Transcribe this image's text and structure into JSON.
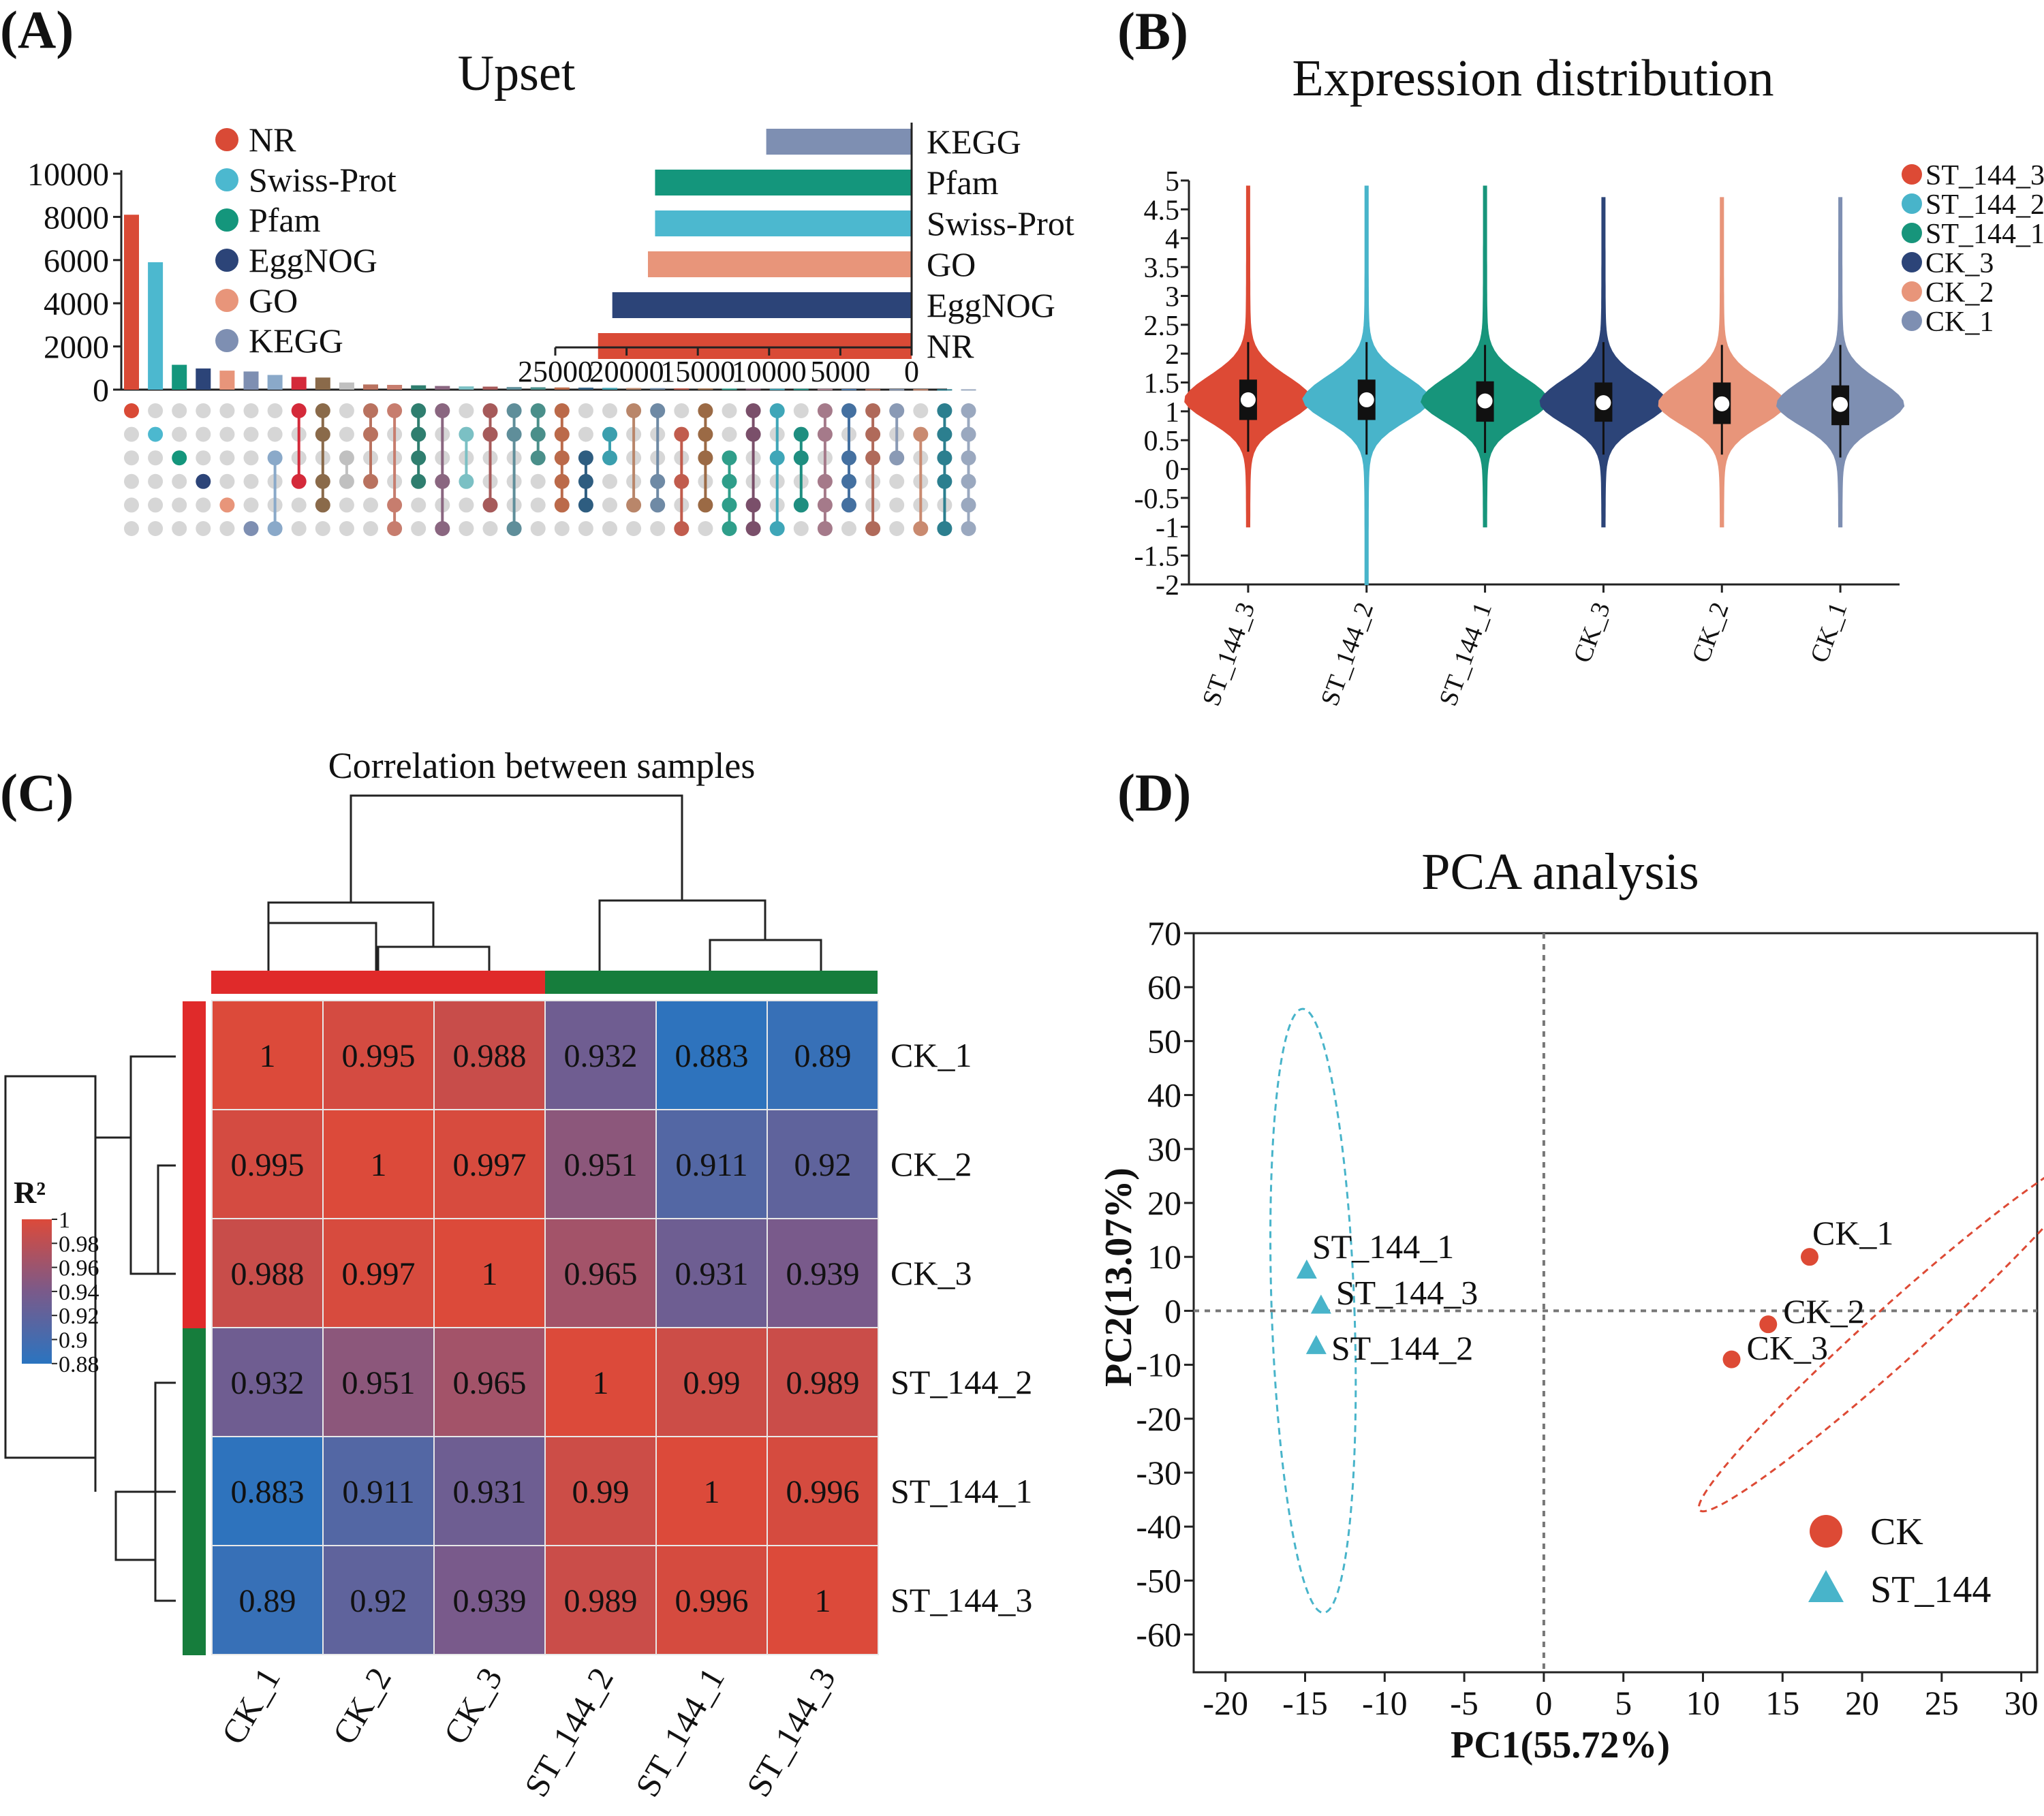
{
  "palette": {
    "nr": "#d94a36",
    "swiss": "#4cb8cf",
    "pfam": "#14967c",
    "eggnog": "#2c4478",
    "go": "#e8957a",
    "kegg": "#7e8fb2",
    "ck": "#dd4a35",
    "st": "#48b4ca",
    "heat_low": "#2a74c0",
    "heat_mid": "#7a5a8a",
    "heat_high": "#dc4a3a",
    "grp_red": "#e02a2a",
    "grp_green": "#167d3c"
  },
  "panelA": {
    "label": "(A)",
    "title": "Upset",
    "chart_data": {
      "type": "bar",
      "sets": [
        "NR",
        "Swiss-Prot",
        "Pfam",
        "EggNOG",
        "GO",
        "KEGG"
      ],
      "set_colors": [
        "#d94a36",
        "#4cb8cf",
        "#14967c",
        "#2c4478",
        "#e8957a",
        "#7e8fb2"
      ],
      "set_sizes": {
        "categories": [
          "KEGG",
          "Pfam",
          "Swiss-Prot",
          "GO",
          "EggNOG",
          "NR"
        ],
        "values": [
          10200,
          18000,
          18000,
          18500,
          21000,
          22000
        ],
        "xlim": [
          25000,
          0
        ],
        "ticks": [
          "25000",
          "20000",
          "15000",
          "10000",
          "5000",
          "0"
        ]
      },
      "intersection_sizes": {
        "values": [
          8100,
          5900,
          1150,
          980,
          880,
          840,
          680,
          590,
          560,
          330,
          240,
          220,
          200,
          170,
          150,
          140,
          120,
          110,
          100,
          90,
          80,
          75,
          70,
          60,
          55,
          50,
          45,
          40,
          40,
          35,
          30,
          28,
          25,
          22,
          20,
          18
        ],
        "ylim": [
          0,
          10000
        ],
        "ticks": [
          "0",
          "2000",
          "4000",
          "6000",
          "8000",
          "10000"
        ]
      }
    }
  },
  "panelB": {
    "label": "(B)",
    "title": "Expression distribution",
    "chart_data": {
      "type": "violin",
      "categories": [
        "ST_144_3",
        "ST_144_2",
        "ST_144_1",
        "CK_3",
        "CK_2",
        "CK_1"
      ],
      "colors": [
        "#dd4a35",
        "#48b4ca",
        "#17957b",
        "#2c4478",
        "#e8957a",
        "#7e8fb2"
      ],
      "medians": [
        1.2,
        1.2,
        1.18,
        1.15,
        1.13,
        1.12
      ],
      "q1": [
        0.85,
        0.85,
        0.82,
        0.82,
        0.78,
        0.76
      ],
      "q3": [
        1.55,
        1.55,
        1.52,
        1.5,
        1.5,
        1.45
      ],
      "whisker_low": [
        0.3,
        0.25,
        0.28,
        0.25,
        0.25,
        0.2
      ],
      "whisker_high": [
        2.2,
        2.2,
        2.15,
        2.2,
        2.15,
        2.15
      ],
      "min": [
        -1.0,
        -2.0,
        -1.0,
        -1.0,
        -1.0,
        -1.0
      ],
      "max": [
        4.9,
        4.9,
        4.9,
        4.7,
        4.7,
        4.7
      ],
      "ylim": [
        -2,
        5
      ],
      "ticks": [
        "-2",
        "-1.5",
        "-1",
        "-0.5",
        "0",
        "0.5",
        "1",
        "1.5",
        "2",
        "2.5",
        "3",
        "3.5",
        "4",
        "4.5",
        "5"
      ],
      "legend": [
        "ST_144_3",
        "ST_144_2",
        "ST_144_1",
        "CK_3",
        "CK_2",
        "CK_1"
      ]
    }
  },
  "panelC": {
    "label": "(C)",
    "title": "Correlation between samples",
    "chart_data": {
      "type": "heatmap",
      "rows": [
        "CK_1",
        "CK_2",
        "CK_3",
        "ST_144_2",
        "ST_144_1",
        "ST_144_3"
      ],
      "cols": [
        "CK_1",
        "CK_2",
        "CK_3",
        "ST_144_2",
        "ST_144_1",
        "ST_144_3"
      ],
      "values": [
        [
          "1",
          "0.995",
          "0.988",
          "0.932",
          "0.883",
          "0.89"
        ],
        [
          "0.995",
          "1",
          "0.997",
          "0.951",
          "0.911",
          "0.92"
        ],
        [
          "0.988",
          "0.997",
          "1",
          "0.965",
          "0.931",
          "0.939"
        ],
        [
          "0.932",
          "0.951",
          "0.965",
          "1",
          "0.99",
          "0.989"
        ],
        [
          "0.883",
          "0.911",
          "0.931",
          "0.99",
          "1",
          "0.996"
        ],
        [
          "0.89",
          "0.92",
          "0.939",
          "0.989",
          "0.996",
          "1"
        ]
      ],
      "legend_title": "R²",
      "legend_ticks": [
        "1",
        "0.98",
        "0.96",
        "0.94",
        "0.92",
        "0.9",
        "0.88"
      ],
      "range": [
        0.88,
        1
      ]
    }
  },
  "panelD": {
    "label": "(D)",
    "title": "PCA analysis",
    "chart_data": {
      "type": "scatter",
      "xlabel": "PC1(55.72%)",
      "ylabel": "PC2(13.07%)",
      "xlim": [
        -22,
        31
      ],
      "ylim": [
        -67,
        70
      ],
      "xticks": [
        "-20",
        "-15",
        "-10",
        "-5",
        "0",
        "5",
        "10",
        "15",
        "20",
        "25",
        "30"
      ],
      "yticks": [
        "70",
        "60",
        "50",
        "40",
        "30",
        "20",
        "10",
        "0",
        "-10",
        "-20",
        "-30",
        "-40",
        "-50",
        "-60"
      ],
      "series": [
        {
          "name": "CK",
          "marker": "circle",
          "color": "#dd4a35",
          "points": [
            {
              "label": "CK_1",
              "x": 16.7,
              "y": 10
            },
            {
              "label": "CK_2",
              "x": 14.1,
              "y": -2.5
            },
            {
              "label": "CK_3",
              "x": 11.8,
              "y": -9
            }
          ]
        },
        {
          "name": "ST_144",
          "marker": "triangle",
          "color": "#48b4ca",
          "points": [
            {
              "label": "ST_144_1",
              "x": -14.9,
              "y": 7.5
            },
            {
              "label": "ST_144_3",
              "x": -14.0,
              "y": 1
            },
            {
              "label": "ST_144_2",
              "x": -14.3,
              "y": -6.5
            }
          ]
        }
      ]
    }
  }
}
